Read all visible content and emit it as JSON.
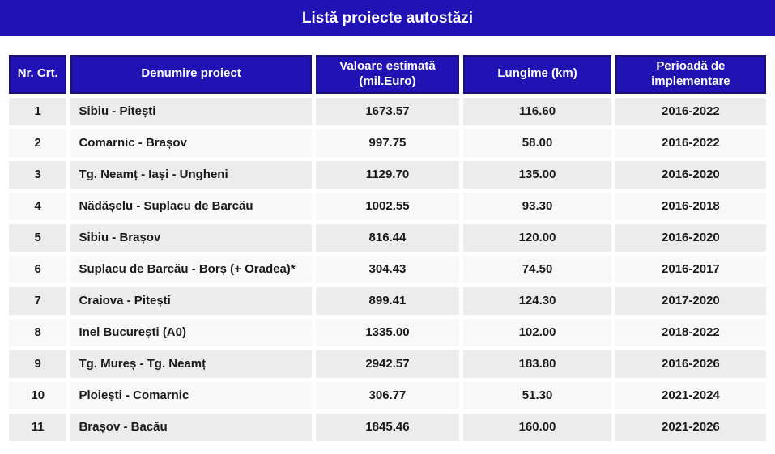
{
  "title_bar": {
    "title": "Listă proiecte autostăzi"
  },
  "colors": {
    "title_bar_bg": "#2112B3",
    "header_cell_bg": "#2112B3",
    "header_cell_border": "#1A1173",
    "header_text": "#FFFFFF",
    "row_odd_bg": "#ECECEC",
    "row_even_bg": "#F8F8F8",
    "body_text": "#1A1A1A"
  },
  "table": {
    "columns": [
      {
        "key": "nr",
        "label": "Nr. Crt.",
        "lines": [
          "Nr. Crt."
        ],
        "align": "center"
      },
      {
        "key": "name",
        "label": "Denumire proiect",
        "lines": [
          "Denumire proiect"
        ],
        "align": "left"
      },
      {
        "key": "value",
        "label": "Valoare estimată (mil.Euro)",
        "lines": [
          "Valoare estimată",
          "(mil.Euro)"
        ],
        "align": "center"
      },
      {
        "key": "length",
        "label": "Lungime (km)",
        "lines": [
          "Lungime (km)"
        ],
        "align": "center"
      },
      {
        "key": "period",
        "label": "Perioadă de implementare",
        "lines": [
          "Perioadă de",
          "implementare"
        ],
        "align": "center"
      }
    ],
    "rows": [
      {
        "nr": "1",
        "name": "Sibiu - Pitești",
        "value": "1673.57",
        "length": "116.60",
        "period": "2016-2022"
      },
      {
        "nr": "2",
        "name": "Comarnic - Brașov",
        "value": "997.75",
        "length": "58.00",
        "period": "2016-2022"
      },
      {
        "nr": "3",
        "name": "Tg. Neamț - Iași - Ungheni",
        "value": "1129.70",
        "length": "135.00",
        "period": "2016-2020"
      },
      {
        "nr": "4",
        "name": "Nădășelu - Suplacu de Barcău",
        "value": "1002.55",
        "length": "93.30",
        "period": "2016-2018"
      },
      {
        "nr": "5",
        "name": "Sibiu - Brașov",
        "value": "816.44",
        "length": "120.00",
        "period": "2016-2020"
      },
      {
        "nr": "6",
        "name": "Suplacu de Barcău - Borș (+ Oradea)*",
        "value": "304.43",
        "length": "74.50",
        "period": "2016-2017"
      },
      {
        "nr": "7",
        "name": "Craiova - Pitești",
        "value": "899.41",
        "length": "124.30",
        "period": "2017-2020"
      },
      {
        "nr": "8",
        "name": "Inel București (A0)",
        "value": "1335.00",
        "length": "102.00",
        "period": "2018-2022"
      },
      {
        "nr": "9",
        "name": "Tg. Mureș - Tg. Neamț",
        "value": "2942.57",
        "length": "183.80",
        "period": "2016-2026"
      },
      {
        "nr": "10",
        "name": "Ploiești - Comarnic",
        "value": "306.77",
        "length": "51.30",
        "period": "2021-2024"
      },
      {
        "nr": "11",
        "name": "Brașov - Bacău",
        "value": "1845.46",
        "length": "160.00",
        "period": "2021-2026"
      }
    ]
  }
}
